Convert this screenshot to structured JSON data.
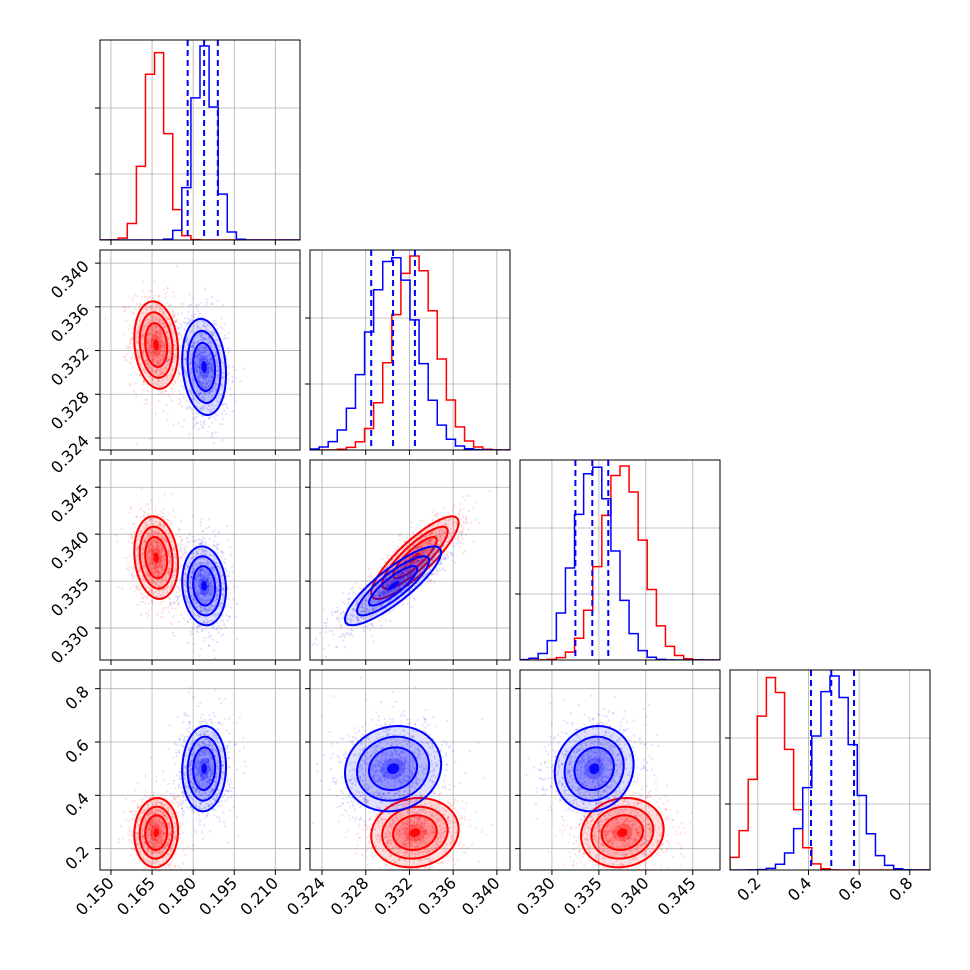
{
  "figure": {
    "type": "corner-plot",
    "colors": {
      "red": "#ff0000",
      "blue": "#0000ff",
      "grid": "#b0b0b0",
      "axis": "#000000"
    },
    "grid": true
  },
  "chart_data": {
    "type": "corner",
    "series": [
      {
        "color": "#ff0000",
        "mean": [
          0.1665,
          0.3325,
          0.3375,
          0.26
        ],
        "std": [
          0.004,
          0.002,
          0.0022,
          0.065
        ],
        "corr": {
          "1,0": -0.15,
          "2,0": -0.15,
          "2,1": 0.85,
          "3,0": 0.05,
          "3,1": 0.1,
          "3,2": 0.1
        }
      },
      {
        "color": "#0000ff",
        "mean": [
          0.184,
          0.3305,
          0.3345,
          0.5
        ],
        "std": [
          0.004,
          0.0022,
          0.0021,
          0.08
        ],
        "corr": {
          "1,0": -0.15,
          "2,0": -0.1,
          "2,1": 0.85,
          "3,0": 0.05,
          "3,1": 0.1,
          "3,2": 0.1
        }
      }
    ],
    "quantile_lines": {
      "color": "#0000ff",
      "values": [
        [
          0.178,
          0.184,
          0.189
        ],
        [
          0.3285,
          0.3305,
          0.3325
        ],
        [
          0.3325,
          0.3343,
          0.336
        ],
        [
          0.41,
          0.49,
          0.58
        ]
      ]
    },
    "panels": [
      {
        "id": "0,0",
        "kind": "hist",
        "xlim": [
          0.146,
          0.219
        ],
        "xticks": [
          0.15,
          0.165,
          0.18,
          0.195,
          0.21
        ],
        "series_peaks": [
          [
            0.1665
          ],
          [
            0.184
          ]
        ],
        "yticks_count": 2
      },
      {
        "id": "1,1",
        "kind": "hist",
        "xlim": [
          0.3229,
          0.3412
        ],
        "xticks": [
          0.324,
          0.328,
          0.332,
          0.336,
          0.34
        ]
      },
      {
        "id": "2,2",
        "kind": "hist",
        "xlim": [
          0.3266,
          0.3479
        ],
        "xticks": [
          0.33,
          0.335,
          0.34,
          0.345
        ]
      },
      {
        "id": "3,3",
        "kind": "hist",
        "xlim": [
          0.09,
          0.88
        ],
        "xticks": [
          0.2,
          0.4,
          0.6,
          0.8
        ]
      }
    ],
    "axes": {
      "x_limits": [
        [
          0.146,
          0.219
        ],
        [
          0.3229,
          0.3412
        ],
        [
          0.3266,
          0.3479
        ],
        [
          0.09,
          0.88
        ]
      ],
      "y_limits": {
        "1": [
          0.3229,
          0.3412
        ],
        "2": [
          0.3266,
          0.3479
        ],
        "3": [
          0.12,
          0.87
        ]
      },
      "x_tick_labels": [
        [
          "0.150",
          "0.165",
          "0.180",
          "0.195",
          "0.210"
        ],
        [
          "0.324",
          "0.328",
          "0.332",
          "0.336",
          "0.340"
        ],
        [
          "0.330",
          "0.335",
          "0.340",
          "0.345"
        ],
        [
          "0.2",
          "0.4",
          "0.6",
          "0.8"
        ]
      ],
      "x_tick_values": [
        [
          0.15,
          0.165,
          0.18,
          0.195,
          0.21
        ],
        [
          0.324,
          0.328,
          0.332,
          0.336,
          0.34
        ],
        [
          0.33,
          0.335,
          0.34,
          0.345
        ],
        [
          0.2,
          0.4,
          0.6,
          0.8
        ]
      ],
      "y_tick_labels": {
        "1": [
          "0.324",
          "0.328",
          "0.332",
          "0.336",
          "0.340"
        ],
        "2": [
          "0.330",
          "0.335",
          "0.340",
          "0.345"
        ],
        "3": [
          "0.2",
          "0.4",
          "0.6",
          "0.8"
        ]
      },
      "y_tick_values": {
        "1": [
          0.324,
          0.328,
          0.332,
          0.336,
          0.34
        ],
        "2": [
          0.33,
          0.335,
          0.34,
          0.345
        ],
        "3": [
          0.2,
          0.4,
          0.6,
          0.8
        ]
      }
    },
    "xlabel": "",
    "ylabel": "",
    "title": ""
  }
}
